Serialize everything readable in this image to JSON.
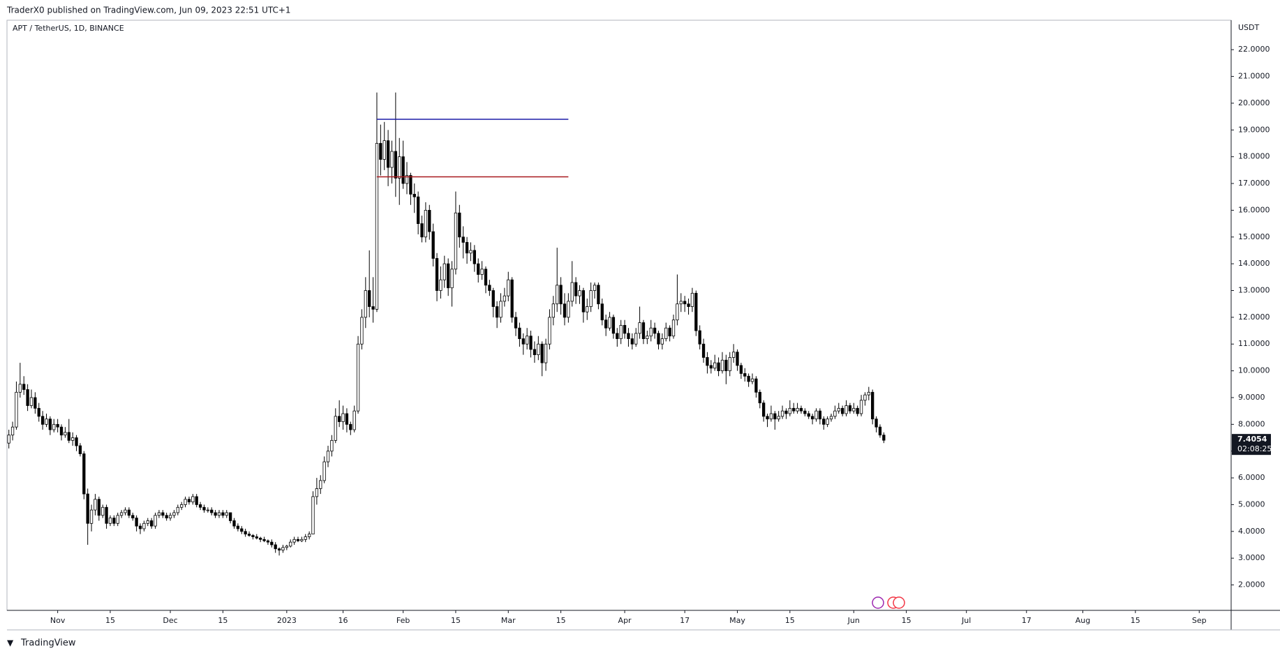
{
  "header": "TraderX0 published on TradingView.com, Jun 09, 2023 22:51 UTC+1",
  "footer": "TradingView",
  "chart_data": {
    "type": "candlestick",
    "title": "APT / TetherUS, 1D, BINANCE",
    "y_axis_label": "USDT",
    "countdown": "02:08:25",
    "up_color": "#ffffff",
    "down_color": "#000000",
    "wick_color": "#000000",
    "grid": false,
    "xlim": [
      -0.5,
      325.5
    ],
    "xticks": [
      {
        "value": 13,
        "label": "Nov"
      },
      {
        "value": 27,
        "label": "15"
      },
      {
        "value": 43,
        "label": "Dec"
      },
      {
        "value": 57,
        "label": "15"
      },
      {
        "value": 74,
        "label": "2023"
      },
      {
        "value": 89,
        "label": "16"
      },
      {
        "value": 105,
        "label": "Feb"
      },
      {
        "value": 119,
        "label": "15"
      },
      {
        "value": 133,
        "label": "Mar"
      },
      {
        "value": 147,
        "label": "15"
      },
      {
        "value": 164,
        "label": "Apr"
      },
      {
        "value": 180,
        "label": "17"
      },
      {
        "value": 194,
        "label": "May"
      },
      {
        "value": 208,
        "label": "15"
      },
      {
        "value": 225,
        "label": "Jun"
      },
      {
        "value": 239,
        "label": "15"
      },
      {
        "value": 255,
        "label": "Jul"
      },
      {
        "value": 271,
        "label": "17"
      },
      {
        "value": 286,
        "label": "Aug"
      },
      {
        "value": 300,
        "label": "15"
      },
      {
        "value": 317,
        "label": "Sep"
      }
    ],
    "ylim": [
      1.05,
      23.1
    ],
    "yticks": [
      {
        "value": 2,
        "label": "2.0000"
      },
      {
        "value": 3,
        "label": "3.0000"
      },
      {
        "value": 4,
        "label": "4.0000"
      },
      {
        "value": 5,
        "label": "5.0000"
      },
      {
        "value": 6,
        "label": "6.0000"
      },
      {
        "value": 7,
        "label": "7.0000"
      },
      {
        "value": 8,
        "label": "8.0000"
      },
      {
        "value": 9,
        "label": "9.0000"
      },
      {
        "value": 10,
        "label": "10.0000"
      },
      {
        "value": 11,
        "label": "11.0000"
      },
      {
        "value": 12,
        "label": "12.0000"
      },
      {
        "value": 13,
        "label": "13.0000"
      },
      {
        "value": 14,
        "label": "14.0000"
      },
      {
        "value": 15,
        "label": "15.0000"
      },
      {
        "value": 16,
        "label": "16.0000"
      },
      {
        "value": 17,
        "label": "17.0000"
      },
      {
        "value": 18,
        "label": "18.0000"
      },
      {
        "value": 19,
        "label": "19.0000"
      },
      {
        "value": 20,
        "label": "20.0000"
      },
      {
        "value": 21,
        "label": "21.0000"
      },
      {
        "value": 22,
        "label": "22.0000"
      }
    ],
    "hlines": [
      {
        "value": 19.4,
        "xlim": [
          98,
          149
        ],
        "color": "#1c1ca8"
      },
      {
        "value": 17.25,
        "xlim": [
          98,
          149
        ],
        "color": "#a8181c"
      }
    ],
    "ohlc": [
      [
        7.3,
        7.8,
        7.1,
        7.6
      ],
      [
        7.6,
        8.1,
        7.4,
        7.9
      ],
      [
        7.9,
        9.6,
        7.8,
        9.2
      ],
      [
        9.2,
        10.3,
        9.0,
        9.5
      ],
      [
        9.5,
        9.8,
        9.1,
        9.3
      ],
      [
        9.3,
        9.5,
        8.5,
        8.7
      ],
      [
        8.7,
        9.3,
        8.6,
        9.0
      ],
      [
        9.0,
        9.2,
        8.4,
        8.6
      ],
      [
        8.6,
        8.8,
        8.1,
        8.3
      ],
      [
        8.3,
        8.5,
        7.8,
        8.0
      ],
      [
        8.0,
        8.4,
        7.9,
        8.2
      ],
      [
        8.2,
        8.3,
        7.6,
        7.8
      ],
      [
        7.8,
        8.2,
        7.7,
        8.0
      ],
      [
        8.0,
        8.2,
        7.7,
        7.9
      ],
      [
        7.9,
        8.0,
        7.4,
        7.6
      ],
      [
        7.6,
        7.9,
        7.5,
        7.7
      ],
      [
        7.7,
        8.2,
        7.3,
        7.4
      ],
      [
        7.4,
        7.7,
        7.2,
        7.5
      ],
      [
        7.5,
        7.6,
        7.0,
        7.2
      ],
      [
        7.2,
        7.3,
        6.8,
        6.9
      ],
      [
        6.9,
        7.0,
        5.2,
        5.4
      ],
      [
        5.4,
        5.6,
        3.5,
        4.3
      ],
      [
        4.3,
        5.0,
        4.0,
        4.8
      ],
      [
        4.8,
        5.4,
        4.6,
        5.2
      ],
      [
        5.2,
        5.3,
        4.4,
        4.6
      ],
      [
        4.6,
        5.0,
        4.5,
        4.9
      ],
      [
        4.9,
        5.0,
        4.1,
        4.3
      ],
      [
        4.3,
        4.6,
        4.2,
        4.5
      ],
      [
        4.5,
        4.6,
        4.2,
        4.3
      ],
      [
        4.3,
        4.7,
        4.2,
        4.6
      ],
      [
        4.6,
        4.8,
        4.5,
        4.7
      ],
      [
        4.7,
        4.9,
        4.6,
        4.8
      ],
      [
        4.8,
        4.9,
        4.5,
        4.6
      ],
      [
        4.6,
        4.7,
        4.4,
        4.5
      ],
      [
        4.5,
        4.6,
        4.0,
        4.2
      ],
      [
        4.2,
        4.3,
        3.9,
        4.1
      ],
      [
        4.1,
        4.4,
        4.0,
        4.3
      ],
      [
        4.3,
        4.5,
        4.2,
        4.4
      ],
      [
        4.4,
        4.5,
        4.1,
        4.2
      ],
      [
        4.2,
        4.7,
        4.1,
        4.6
      ],
      [
        4.6,
        4.8,
        4.5,
        4.7
      ],
      [
        4.7,
        4.8,
        4.5,
        4.6
      ],
      [
        4.6,
        4.7,
        4.4,
        4.5
      ],
      [
        4.5,
        4.7,
        4.4,
        4.6
      ],
      [
        4.6,
        4.8,
        4.5,
        4.7
      ],
      [
        4.7,
        5.0,
        4.6,
        4.9
      ],
      [
        4.9,
        5.1,
        4.8,
        5.0
      ],
      [
        5.0,
        5.3,
        4.9,
        5.2
      ],
      [
        5.2,
        5.3,
        5.0,
        5.1
      ],
      [
        5.1,
        5.4,
        5.0,
        5.3
      ],
      [
        5.3,
        5.4,
        4.9,
        5.0
      ],
      [
        5.0,
        5.1,
        4.8,
        4.9
      ],
      [
        4.9,
        5.0,
        4.7,
        4.8
      ],
      [
        4.8,
        4.9,
        4.7,
        4.8
      ],
      [
        4.8,
        4.9,
        4.6,
        4.7
      ],
      [
        4.7,
        4.8,
        4.5,
        4.6
      ],
      [
        4.6,
        4.8,
        4.5,
        4.7
      ],
      [
        4.7,
        4.8,
        4.5,
        4.6
      ],
      [
        4.6,
        4.8,
        4.5,
        4.7
      ],
      [
        4.7,
        4.7,
        4.3,
        4.4
      ],
      [
        4.4,
        4.5,
        4.1,
        4.2
      ],
      [
        4.2,
        4.3,
        4.0,
        4.1
      ],
      [
        4.1,
        4.2,
        3.9,
        4.0
      ],
      [
        4.0,
        4.1,
        3.8,
        3.9
      ],
      [
        3.9,
        4.0,
        3.8,
        3.85
      ],
      [
        3.85,
        3.9,
        3.7,
        3.8
      ],
      [
        3.8,
        3.9,
        3.7,
        3.75
      ],
      [
        3.75,
        3.8,
        3.6,
        3.7
      ],
      [
        3.7,
        3.8,
        3.6,
        3.65
      ],
      [
        3.65,
        3.7,
        3.5,
        3.6
      ],
      [
        3.6,
        3.7,
        3.4,
        3.5
      ],
      [
        3.5,
        3.6,
        3.2,
        3.35
      ],
      [
        3.35,
        3.4,
        3.1,
        3.3
      ],
      [
        3.3,
        3.5,
        3.2,
        3.4
      ],
      [
        3.4,
        3.5,
        3.3,
        3.45
      ],
      [
        3.45,
        3.7,
        3.4,
        3.6
      ],
      [
        3.6,
        3.8,
        3.5,
        3.7
      ],
      [
        3.7,
        3.8,
        3.6,
        3.65
      ],
      [
        3.65,
        3.8,
        3.6,
        3.7
      ],
      [
        3.7,
        3.9,
        3.6,
        3.8
      ],
      [
        3.8,
        4.0,
        3.7,
        3.9
      ],
      [
        3.9,
        5.5,
        3.9,
        5.3
      ],
      [
        5.3,
        6.0,
        5.0,
        5.6
      ],
      [
        5.6,
        6.1,
        5.4,
        5.9
      ],
      [
        5.9,
        6.8,
        5.8,
        6.6
      ],
      [
        6.6,
        7.2,
        6.4,
        7.0
      ],
      [
        7.0,
        7.6,
        6.8,
        7.4
      ],
      [
        7.4,
        8.6,
        7.3,
        8.3
      ],
      [
        8.3,
        8.9,
        7.9,
        8.1
      ],
      [
        8.1,
        8.7,
        7.8,
        8.4
      ],
      [
        8.4,
        8.6,
        7.7,
        8.0
      ],
      [
        8.0,
        8.1,
        7.6,
        7.8
      ],
      [
        7.8,
        8.7,
        7.7,
        8.5
      ],
      [
        8.5,
        11.3,
        8.4,
        11.0
      ],
      [
        11.0,
        12.3,
        10.8,
        12.0
      ],
      [
        12.0,
        13.5,
        11.6,
        13.0
      ],
      [
        13.0,
        14.5,
        12.0,
        12.4
      ],
      [
        12.4,
        13.5,
        11.8,
        12.3
      ],
      [
        12.3,
        20.4,
        12.2,
        18.5
      ],
      [
        18.5,
        19.2,
        17.3,
        17.9
      ],
      [
        17.9,
        19.3,
        17.5,
        18.6
      ],
      [
        18.6,
        19.0,
        16.9,
        17.6
      ],
      [
        17.6,
        18.6,
        17.0,
        18.2
      ],
      [
        18.2,
        20.4,
        16.5,
        17.2
      ],
      [
        17.2,
        18.7,
        16.2,
        18.0
      ],
      [
        18.0,
        18.6,
        16.8,
        17.0
      ],
      [
        17.0,
        17.8,
        16.6,
        17.3
      ],
      [
        17.3,
        17.4,
        16.2,
        16.6
      ],
      [
        16.6,
        17.0,
        15.9,
        16.5
      ],
      [
        16.5,
        16.7,
        15.1,
        15.5
      ],
      [
        15.5,
        15.8,
        14.8,
        15.0
      ],
      [
        15.0,
        16.3,
        14.8,
        16.0
      ],
      [
        16.0,
        16.2,
        14.9,
        15.2
      ],
      [
        15.2,
        15.5,
        13.9,
        14.2
      ],
      [
        14.2,
        14.4,
        12.6,
        13.0
      ],
      [
        13.0,
        13.9,
        12.7,
        13.4
      ],
      [
        13.4,
        14.3,
        13.1,
        14.0
      ],
      [
        14.0,
        14.2,
        12.8,
        13.1
      ],
      [
        13.1,
        14.1,
        12.4,
        13.8
      ],
      [
        13.8,
        16.7,
        13.6,
        15.9
      ],
      [
        15.9,
        16.2,
        14.6,
        15.0
      ],
      [
        15.0,
        15.4,
        14.2,
        14.8
      ],
      [
        14.8,
        15.0,
        14.0,
        14.4
      ],
      [
        14.4,
        14.8,
        14.1,
        14.5
      ],
      [
        14.5,
        14.7,
        13.7,
        14.0
      ],
      [
        14.0,
        14.2,
        13.3,
        13.6
      ],
      [
        13.6,
        14.1,
        13.4,
        13.8
      ],
      [
        13.8,
        13.9,
        12.9,
        13.2
      ],
      [
        13.2,
        13.4,
        12.8,
        13.0
      ],
      [
        13.0,
        13.1,
        12.0,
        12.4
      ],
      [
        12.4,
        12.6,
        11.6,
        12.0
      ],
      [
        12.0,
        12.9,
        11.8,
        12.6
      ],
      [
        12.6,
        13.1,
        12.4,
        12.8
      ],
      [
        12.8,
        13.7,
        12.6,
        13.4
      ],
      [
        13.4,
        13.5,
        11.8,
        12.0
      ],
      [
        12.0,
        12.2,
        11.3,
        11.6
      ],
      [
        11.6,
        11.8,
        10.9,
        11.2
      ],
      [
        11.2,
        11.4,
        10.6,
        11.0
      ],
      [
        11.0,
        11.6,
        10.8,
        11.3
      ],
      [
        11.3,
        11.5,
        10.5,
        10.8
      ],
      [
        10.8,
        11.1,
        10.3,
        10.6
      ],
      [
        10.6,
        11.3,
        10.4,
        11.0
      ],
      [
        11.0,
        11.1,
        9.8,
        10.3
      ],
      [
        10.3,
        11.2,
        10.0,
        11.0
      ],
      [
        11.0,
        12.3,
        10.8,
        12.0
      ],
      [
        12.0,
        12.8,
        11.7,
        12.5
      ],
      [
        12.5,
        14.6,
        12.2,
        13.2
      ],
      [
        13.2,
        13.5,
        12.1,
        12.5
      ],
      [
        12.5,
        12.9,
        11.7,
        12.0
      ],
      [
        12.0,
        12.9,
        11.8,
        12.6
      ],
      [
        12.6,
        14.1,
        12.4,
        13.3
      ],
      [
        13.3,
        13.5,
        12.5,
        12.8
      ],
      [
        12.8,
        13.2,
        12.5,
        13.0
      ],
      [
        13.0,
        13.1,
        11.8,
        12.2
      ],
      [
        12.2,
        12.7,
        11.9,
        12.4
      ],
      [
        12.4,
        13.3,
        12.2,
        13.0
      ],
      [
        13.0,
        13.3,
        12.7,
        13.2
      ],
      [
        13.2,
        13.3,
        12.3,
        12.5
      ],
      [
        12.5,
        12.7,
        11.7,
        11.9
      ],
      [
        11.9,
        12.1,
        11.3,
        11.6
      ],
      [
        11.6,
        12.2,
        11.5,
        12.0
      ],
      [
        12.0,
        12.1,
        11.2,
        11.4
      ],
      [
        11.4,
        11.6,
        10.9,
        11.2
      ],
      [
        11.2,
        11.9,
        11.0,
        11.7
      ],
      [
        11.7,
        11.9,
        11.2,
        11.4
      ],
      [
        11.4,
        11.6,
        10.9,
        11.2
      ],
      [
        11.2,
        11.4,
        10.8,
        11.0
      ],
      [
        11.0,
        11.6,
        10.9,
        11.4
      ],
      [
        11.4,
        12.4,
        11.2,
        11.8
      ],
      [
        11.8,
        11.9,
        11.0,
        11.2
      ],
      [
        11.2,
        11.5,
        11.0,
        11.3
      ],
      [
        11.3,
        11.9,
        11.1,
        11.6
      ],
      [
        11.6,
        11.8,
        11.2,
        11.4
      ],
      [
        11.4,
        11.5,
        10.8,
        11.0
      ],
      [
        11.0,
        11.4,
        10.8,
        11.2
      ],
      [
        11.2,
        11.8,
        11.1,
        11.6
      ],
      [
        11.6,
        11.7,
        11.1,
        11.3
      ],
      [
        11.3,
        12.1,
        11.2,
        11.9
      ],
      [
        11.9,
        13.6,
        11.7,
        12.5
      ],
      [
        12.5,
        12.9,
        12.2,
        12.6
      ],
      [
        12.6,
        12.8,
        12.2,
        12.5
      ],
      [
        12.5,
        12.7,
        12.1,
        12.4
      ],
      [
        12.4,
        13.1,
        12.2,
        12.9
      ],
      [
        12.9,
        13.0,
        11.3,
        11.5
      ],
      [
        11.5,
        11.7,
        10.8,
        11.0
      ],
      [
        11.0,
        11.2,
        10.3,
        10.5
      ],
      [
        10.5,
        10.7,
        9.9,
        10.2
      ],
      [
        10.2,
        10.4,
        9.9,
        10.1
      ],
      [
        10.1,
        10.6,
        10.0,
        10.3
      ],
      [
        10.3,
        10.5,
        9.8,
        10.0
      ],
      [
        10.0,
        10.7,
        9.9,
        10.4
      ],
      [
        10.4,
        10.6,
        9.5,
        10.0
      ],
      [
        10.0,
        10.7,
        9.8,
        10.5
      ],
      [
        10.5,
        11.0,
        10.3,
        10.7
      ],
      [
        10.7,
        10.8,
        10.0,
        10.2
      ],
      [
        10.2,
        10.3,
        9.7,
        9.9
      ],
      [
        9.9,
        10.1,
        9.6,
        9.8
      ],
      [
        9.8,
        9.9,
        9.4,
        9.6
      ],
      [
        9.6,
        9.9,
        9.5,
        9.7
      ],
      [
        9.7,
        9.8,
        9.0,
        9.2
      ],
      [
        9.2,
        9.3,
        8.6,
        8.8
      ],
      [
        8.8,
        8.9,
        8.1,
        8.3
      ],
      [
        8.3,
        8.4,
        7.9,
        8.2
      ],
      [
        8.2,
        8.7,
        8.1,
        8.4
      ],
      [
        8.4,
        8.5,
        7.8,
        8.2
      ],
      [
        8.2,
        8.5,
        8.1,
        8.3
      ],
      [
        8.3,
        8.7,
        8.2,
        8.5
      ],
      [
        8.5,
        8.6,
        8.2,
        8.4
      ],
      [
        8.4,
        8.9,
        8.3,
        8.6
      ],
      [
        8.6,
        8.8,
        8.4,
        8.5
      ],
      [
        8.5,
        8.8,
        8.4,
        8.6
      ],
      [
        8.6,
        8.7,
        8.4,
        8.5
      ],
      [
        8.5,
        8.6,
        8.3,
        8.4
      ],
      [
        8.4,
        8.5,
        8.2,
        8.3
      ],
      [
        8.3,
        8.4,
        8.0,
        8.2
      ],
      [
        8.2,
        8.6,
        8.1,
        8.5
      ],
      [
        8.5,
        8.6,
        8.0,
        8.2
      ],
      [
        8.2,
        8.3,
        7.8,
        8.0
      ],
      [
        8.0,
        8.3,
        7.9,
        8.2
      ],
      [
        8.2,
        8.4,
        8.1,
        8.3
      ],
      [
        8.3,
        8.7,
        8.2,
        8.5
      ],
      [
        8.5,
        8.8,
        8.4,
        8.6
      ],
      [
        8.6,
        8.7,
        8.3,
        8.4
      ],
      [
        8.4,
        8.9,
        8.3,
        8.7
      ],
      [
        8.7,
        8.8,
        8.4,
        8.5
      ],
      [
        8.5,
        8.8,
        8.4,
        8.6
      ],
      [
        8.6,
        8.7,
        8.3,
        8.4
      ],
      [
        8.4,
        9.1,
        8.3,
        8.9
      ],
      [
        8.9,
        9.2,
        8.7,
        9.1
      ],
      [
        9.1,
        9.4,
        8.9,
        9.2
      ],
      [
        9.2,
        9.3,
        8.0,
        8.2
      ],
      [
        8.2,
        8.3,
        7.7,
        7.9
      ],
      [
        7.9,
        8.0,
        7.5,
        7.6
      ],
      [
        7.6,
        7.7,
        7.3,
        7.4054
      ]
    ]
  }
}
